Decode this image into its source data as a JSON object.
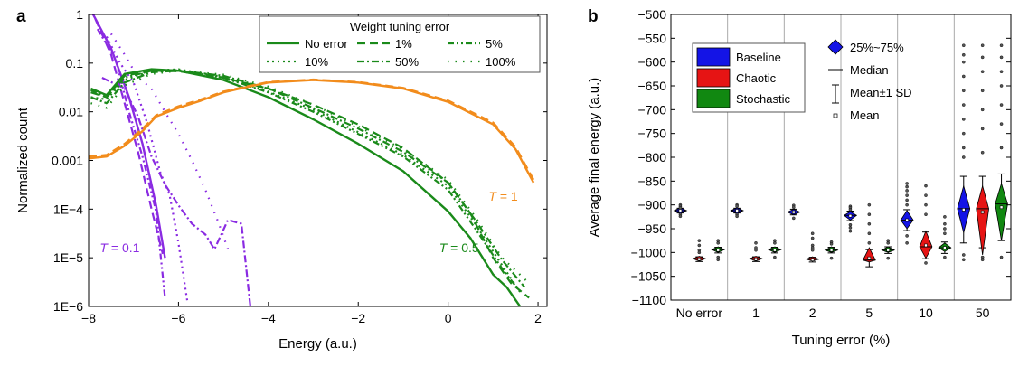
{
  "figure": {
    "panel_a_label": "a",
    "panel_b_label": "b"
  },
  "chart_data": [
    {
      "type": "line",
      "panel": "a",
      "xlabel": "Energy (a.u.)",
      "ylabel": "Normalized count",
      "xlim": [
        -8,
        2.2
      ],
      "ylim": [
        1e-06,
        1
      ],
      "yscale": "log",
      "x_ticks": [
        -8,
        -6,
        -4,
        -2,
        0,
        2
      ],
      "x_tick_labels": [
        "−8",
        "−6",
        "−4",
        "−2",
        "0",
        "2"
      ],
      "y_ticks": [
        1e-06,
        1e-05,
        0.0001,
        0.001,
        0.01,
        0.1,
        1
      ],
      "y_tick_labels": [
        "1E−6",
        "1E−5",
        "1E−4",
        "0.001",
        "0.01",
        "0.1",
        "1"
      ],
      "grid": false,
      "legend": {
        "title": "Weight tuning error",
        "position": "top-right",
        "entries": [
          {
            "label": "No error",
            "dash": "solid"
          },
          {
            "label": "1%",
            "dash": "dash"
          },
          {
            "label": "5%",
            "dash": "dashdotdot"
          },
          {
            "label": "10%",
            "dash": "dot"
          },
          {
            "label": "50%",
            "dash": "dashdot"
          },
          {
            "label": "100%",
            "dash": "sparse-dot"
          }
        ]
      },
      "annotations": [
        {
          "prefix": "T",
          "suffix": " = 0.1",
          "x": -7.75,
          "y": 1.3e-05,
          "color": "#8a2be2"
        },
        {
          "prefix": "T",
          "suffix": " = 0.5",
          "x": -0.2,
          "y": 1.3e-05,
          "color": "#1a8a1a"
        },
        {
          "prefix": "T",
          "suffix": " = 1",
          "x": 0.9,
          "y": 0.00015,
          "color": "#f28c1c"
        }
      ],
      "series_groups": [
        {
          "temperature": "T = 0.1",
          "color": "#8a2be2",
          "series": [
            {
              "label": "No error",
              "dash": "solid",
              "x": [
                -7.9,
                -7.5,
                -7.1,
                -6.8,
                -6.5,
                -6.3
              ],
              "y": [
                1.0,
                0.2,
                0.02,
                0.0022,
                0.00012,
                1e-05
              ]
            },
            {
              "label": "1%",
              "dash": "dash",
              "x": [
                -7.85,
                -7.5,
                -7.2,
                -6.9,
                -6.6,
                -6.35
              ],
              "y": [
                0.8,
                0.15,
                0.015,
                0.0015,
                0.0001,
                1.2e-05
              ]
            },
            {
              "label": "5%",
              "dash": "dashdotdot",
              "x": [
                -7.8,
                -7.4,
                -7.1,
                -6.8,
                -6.5,
                -6.3
              ],
              "y": [
                0.5,
                0.12,
                0.01,
                0.0012,
                9e-05,
                1.5e-06
              ]
            },
            {
              "label": "10%",
              "dash": "dot",
              "x": [
                -7.6,
                -7.3,
                -7.0,
                -6.7,
                -6.4,
                -6.2,
                -6.0,
                -5.8
              ],
              "y": [
                0.35,
                0.1,
                0.04,
                0.006,
                0.00055,
                0.0002,
                2e-05,
                1.2e-06
              ]
            },
            {
              "label": "50%",
              "dash": "dashdot",
              "x": [
                -7.7,
                -7.2,
                -6.9,
                -6.6,
                -6.3,
                -6.0,
                -5.7,
                -5.4,
                -5.2,
                -4.9,
                -4.6,
                -4.4
              ],
              "y": [
                0.05,
                0.03,
                0.008,
                0.0012,
                0.00032,
                0.00012,
                5e-05,
                3e-05,
                1.5e-05,
                6e-05,
                5e-05,
                1e-06
              ]
            },
            {
              "label": "100%",
              "dash": "sparse-dot",
              "x": [
                -7.5,
                -7.2,
                -6.9,
                -6.6,
                -6.3,
                -6.0,
                -5.7,
                -5.4,
                -5.1,
                -4.9
              ],
              "y": [
                0.4,
                0.15,
                0.05,
                0.03,
                0.01,
                0.0035,
                0.001,
                0.00025,
                5e-05,
                1.5e-05
              ]
            }
          ]
        },
        {
          "temperature": "T = 0.5",
          "color": "#1a8a1a",
          "series": [
            {
              "label": "No error",
              "dash": "solid",
              "x": [
                -7.95,
                -7.6,
                -7.2,
                -6.6,
                -6.0,
                -5.0,
                -4.0,
                -3.0,
                -2.0,
                -1.0,
                0.0,
                0.5,
                1.0,
                1.3,
                1.6
              ],
              "y": [
                0.03,
                0.022,
                0.06,
                0.075,
                0.07,
                0.045,
                0.02,
                0.007,
                0.0022,
                0.0006,
                9e-05,
                2.5e-05,
                4.5e-06,
                2.5e-06,
                1e-06
              ]
            },
            {
              "label": "1%",
              "dash": "dash",
              "x": [
                -7.95,
                -7.6,
                -7.2,
                -6.6,
                -6.0,
                -5.0,
                -4.0,
                -3.0,
                -2.0,
                -1.0,
                0.0,
                0.5,
                1.0,
                1.4,
                1.8
              ],
              "y": [
                0.025,
                0.02,
                0.055,
                0.07,
                0.068,
                0.05,
                0.03,
                0.014,
                0.0055,
                0.0018,
                0.00035,
                8e-05,
                1e-05,
                3e-06,
                1.5e-06
              ]
            },
            {
              "label": "5%",
              "dash": "dashdotdot",
              "x": [
                -7.95,
                -7.6,
                -7.2,
                -6.6,
                -6.0,
                -5.0,
                -4.0,
                -3.0,
                -2.0,
                -1.0,
                0.0,
                0.6,
                1.2,
                1.6
              ],
              "y": [
                0.028,
                0.02,
                0.05,
                0.07,
                0.072,
                0.05,
                0.025,
                0.01,
                0.0035,
                0.0012,
                0.00025,
                4e-05,
                6e-06,
                2e-06
              ]
            },
            {
              "label": "10%",
              "dash": "dot",
              "x": [
                -7.95,
                -7.6,
                -7.2,
                -6.6,
                -6.0,
                -5.0,
                -4.0,
                -3.0,
                -2.0,
                -1.0,
                0.0,
                0.6,
                1.2,
                1.6
              ],
              "y": [
                0.02,
                0.018,
                0.045,
                0.07,
                0.075,
                0.052,
                0.026,
                0.011,
                0.0038,
                0.0013,
                0.0003,
                5e-05,
                7e-06,
                2e-06
              ]
            },
            {
              "label": "50%",
              "dash": "dashdot",
              "x": [
                -7.95,
                -7.6,
                -7.2,
                -6.6,
                -6.0,
                -5.0,
                -4.0,
                -3.0,
                -2.0,
                -1.0,
                0.0,
                0.6,
                1.2,
                1.7
              ],
              "y": [
                0.02,
                0.015,
                0.04,
                0.065,
                0.07,
                0.055,
                0.03,
                0.012,
                0.0045,
                0.0015,
                0.00035,
                6e-05,
                9e-06,
                2.5e-06
              ]
            },
            {
              "label": "100%",
              "dash": "sparse-dot",
              "x": [
                -7.95,
                -7.6,
                -7.2,
                -6.6,
                -6.0,
                -5.0,
                -4.0,
                -3.0,
                -2.0,
                -1.0,
                0.0,
                0.6,
                1.2,
                1.8
              ],
              "y": [
                0.015,
                0.012,
                0.035,
                0.06,
                0.07,
                0.058,
                0.033,
                0.014,
                0.005,
                0.0017,
                0.0004,
                7e-05,
                1e-05,
                3e-06
              ]
            }
          ]
        },
        {
          "temperature": "T = 1",
          "color": "#f28c1c",
          "series": [
            {
              "label": "No error",
              "dash": "solid",
              "x": [
                -8.0,
                -7.6,
                -7.2,
                -6.8,
                -6.5,
                -6.0,
                -5.5,
                -5.0,
                -4.5,
                -4.0,
                -3.0,
                -2.0,
                -1.0,
                0.0,
                1.0,
                1.5,
                1.9
              ],
              "y": [
                0.0011,
                0.0012,
                0.002,
                0.004,
                0.008,
                0.012,
                0.017,
                0.025,
                0.032,
                0.04,
                0.045,
                0.04,
                0.03,
                0.016,
                0.0055,
                0.0017,
                0.00035
              ]
            },
            {
              "label": "1%",
              "dash": "dash",
              "x": [
                -8.0,
                -7.6,
                -7.2,
                -6.8,
                -6.5,
                -6.0,
                -5.5,
                -5.0,
                -4.5,
                -4.0,
                -3.0,
                -2.0,
                -1.0,
                0.0,
                1.0,
                1.5,
                1.9
              ],
              "y": [
                0.0012,
                0.0013,
                0.0022,
                0.0045,
                0.0085,
                0.013,
                0.018,
                0.026,
                0.033,
                0.041,
                0.046,
                0.041,
                0.031,
                0.017,
                0.006,
                0.0019,
                0.0004
              ]
            }
          ]
        }
      ]
    },
    {
      "type": "box",
      "panel": "b",
      "xlabel": "Tuning error (%)",
      "ylabel": "Average final energy (a.u.)",
      "ylim": [
        -1100,
        -500
      ],
      "y_ticks": [
        -1100,
        -1050,
        -1000,
        -950,
        -900,
        -850,
        -800,
        -750,
        -700,
        -650,
        -600,
        -550,
        -500
      ],
      "y_tick_labels": [
        "−1100",
        "−1050",
        "−1000",
        "−950",
        "−900",
        "−850",
        "−800",
        "−750",
        "−700",
        "−650",
        "−600",
        "−550",
        "−500"
      ],
      "categories": [
        "No error",
        "1",
        "2",
        "5",
        "10",
        "50"
      ],
      "grid": false,
      "legend_series": [
        {
          "name": "Baseline",
          "color": "#1414e6"
        },
        {
          "name": "Chaotic",
          "color": "#e61414"
        },
        {
          "name": "Stochastic",
          "color": "#118811"
        }
      ],
      "legend_stats": [
        "25%~75%",
        "Median",
        "Mean±1 SD",
        "Mean"
      ],
      "series": [
        {
          "name": "Baseline",
          "q1": [
            -918,
            -918,
            -921,
            -932,
            -950,
            -958
          ],
          "median": [
            -912,
            -912,
            -915,
            -922,
            -932,
            -908
          ],
          "q3": [
            -906,
            -906,
            -909,
            -914,
            -912,
            -860
          ],
          "mean": [
            -912,
            -912,
            -915,
            -923,
            -932,
            -910
          ],
          "sd": [
            5,
            5,
            6,
            10,
            22,
            70
          ],
          "outliers": [
            [
              -900,
              -903,
              -906,
              -920,
              -924
            ],
            [
              -900,
              -903,
              -920,
              -924
            ],
            [
              -901,
              -905,
              -928
            ],
            [
              -903,
              -906,
              -910,
              -942,
              -948,
              -955
            ],
            [
              -855,
              -862,
              -870,
              -880,
              -890,
              -900,
              -965,
              -980
            ],
            [
              -565,
              -585,
              -600,
              -630,
              -660,
              -690,
              -720,
              -750,
              -780,
              -800,
              -1005,
              -1015
            ]
          ]
        },
        {
          "name": "Chaotic",
          "q1": [
            -1018,
            -1018,
            -1018,
            -1020,
            -1012,
            -1005
          ],
          "median": [
            -1013,
            -1013,
            -1014,
            -1016,
            -988,
            -908
          ],
          "q3": [
            -1008,
            -1008,
            -1009,
            -990,
            -955,
            -860
          ],
          "mean": [
            -1014,
            -1014,
            -1015,
            -1012,
            -985,
            -915
          ],
          "sd": [
            5,
            5,
            5,
            18,
            28,
            75
          ],
          "outliers": [
            [
              -975,
              -985,
              -995,
              -1000
            ],
            [
              -980,
              -990,
              -995
            ],
            [
              -960,
              -970,
              -985,
              -990,
              -995
            ],
            [
              -900,
              -920,
              -940,
              -960,
              -980
            ],
            [
              -860,
              -880,
              -900,
              -920,
              -1022
            ],
            [
              -565,
              -590,
              -620,
              -660,
              -700,
              -740,
              -790,
              -1010,
              -1015
            ]
          ]
        },
        {
          "name": "Stochastic",
          "q1": [
            -1000,
            -1000,
            -1000,
            -1000,
            -998,
            -975
          ],
          "median": [
            -994,
            -994,
            -995,
            -995,
            -990,
            -898
          ],
          "q3": [
            -988,
            -988,
            -988,
            -988,
            -980,
            -855
          ],
          "mean": [
            -995,
            -995,
            -995,
            -995,
            -990,
            -905
          ],
          "sd": [
            6,
            6,
            6,
            7,
            12,
            70
          ],
          "outliers": [
            [
              -975,
              -980,
              -1010,
              -1015
            ],
            [
              -975,
              -980,
              -1010
            ],
            [
              -978,
              -982,
              -1012
            ],
            [
              -975,
              -980,
              -1012
            ],
            [
              -925,
              -940,
              -950,
              -960,
              -1010
            ],
            [
              -565,
              -590,
              -620,
              -650,
              -690,
              -730,
              -780,
              -1010
            ]
          ]
        }
      ]
    }
  ]
}
